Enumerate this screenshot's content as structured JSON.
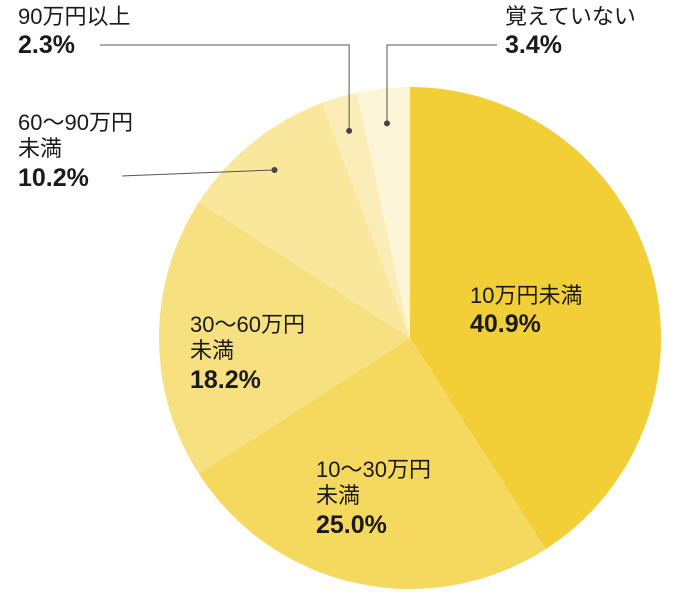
{
  "chart_data": {
    "type": "pie",
    "title": "",
    "start_angle_deg": 0,
    "direction": "clockwise",
    "slices": [
      {
        "label": "10万円未満",
        "label_lines": [
          "10万円未満"
        ],
        "value": 40.9,
        "value_label": "40.9%",
        "color": "#f2cf37"
      },
      {
        "label": "10〜30万円未満",
        "label_lines": [
          "10〜30万円",
          "未満"
        ],
        "value": 25.0,
        "value_label": "25.0%",
        "color": "#f5d95e"
      },
      {
        "label": "30〜60万円未満",
        "label_lines": [
          "30〜60万円",
          "未満"
        ],
        "value": 18.2,
        "value_label": "18.2%",
        "color": "#f7e07f"
      },
      {
        "label": "60〜90万円未満",
        "label_lines": [
          "60〜90万円",
          "未満"
        ],
        "value": 10.2,
        "value_label": "10.2%",
        "color": "#f9e79c"
      },
      {
        "label": "90万円以上",
        "label_lines": [
          "90万円以上"
        ],
        "value": 2.3,
        "value_label": "2.3%",
        "color": "#fbedb7"
      },
      {
        "label": "覚えていない",
        "label_lines": [
          "覚えていない"
        ],
        "value": 3.4,
        "value_label": "3.4%",
        "color": "#fdf5d8"
      }
    ]
  }
}
